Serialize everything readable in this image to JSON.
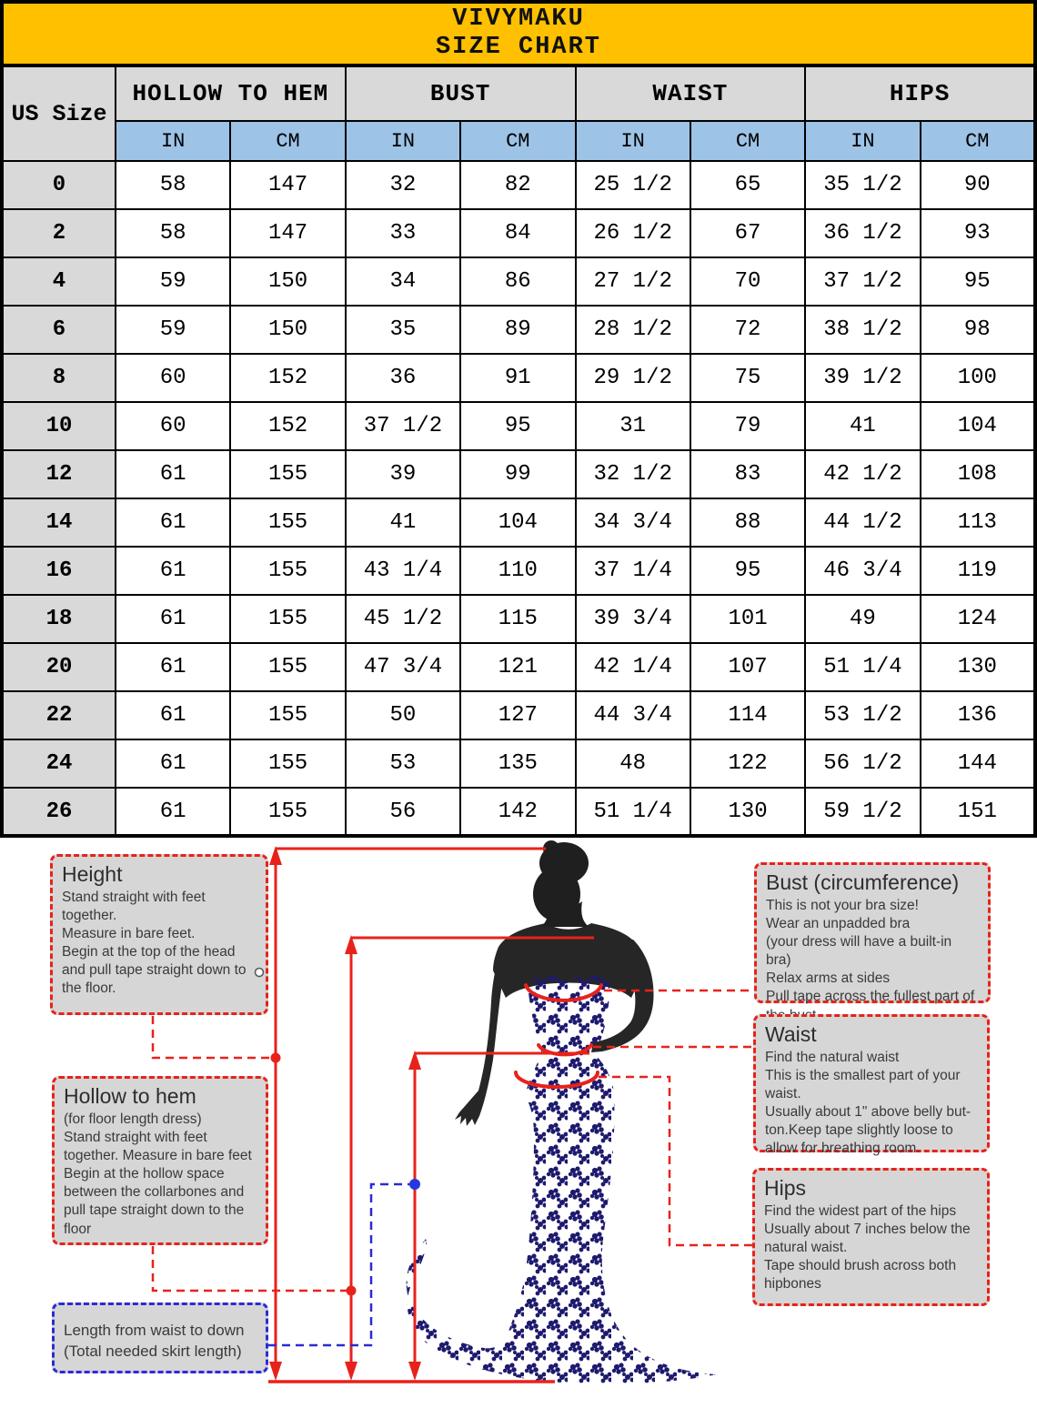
{
  "banner": {
    "brand": "VIVYMAKU",
    "title": "SIZE CHART"
  },
  "chart_data": {
    "type": "table",
    "title": "VIVYMAKU SIZE CHART",
    "row_header": "US Size",
    "column_groups": [
      {
        "label": "HOLLOW TO HEM"
      },
      {
        "label": "BUST"
      },
      {
        "label": "WAIST"
      },
      {
        "label": "HIPS"
      }
    ],
    "unit_in": "IN",
    "unit_cm": "CM",
    "rows": [
      {
        "size": "0",
        "values": [
          "58",
          "147",
          "32",
          "82",
          "25 1/2",
          "65",
          "35 1/2",
          "90"
        ]
      },
      {
        "size": "2",
        "values": [
          "58",
          "147",
          "33",
          "84",
          "26 1/2",
          "67",
          "36 1/2",
          "93"
        ]
      },
      {
        "size": "4",
        "values": [
          "59",
          "150",
          "34",
          "86",
          "27 1/2",
          "70",
          "37 1/2",
          "95"
        ]
      },
      {
        "size": "6",
        "values": [
          "59",
          "150",
          "35",
          "89",
          "28 1/2",
          "72",
          "38 1/2",
          "98"
        ]
      },
      {
        "size": "8",
        "values": [
          "60",
          "152",
          "36",
          "91",
          "29 1/2",
          "75",
          "39 1/2",
          "100"
        ]
      },
      {
        "size": "10",
        "values": [
          "60",
          "152",
          "37 1/2",
          "95",
          "31",
          "79",
          "41",
          "104"
        ]
      },
      {
        "size": "12",
        "values": [
          "61",
          "155",
          "39",
          "99",
          "32 1/2",
          "83",
          "42 1/2",
          "108"
        ]
      },
      {
        "size": "14",
        "values": [
          "61",
          "155",
          "41",
          "104",
          "34 3/4",
          "88",
          "44 1/2",
          "113"
        ]
      },
      {
        "size": "16",
        "values": [
          "61",
          "155",
          "43 1/4",
          "110",
          "37 1/4",
          "95",
          "46 3/4",
          "119"
        ]
      },
      {
        "size": "18",
        "values": [
          "61",
          "155",
          "45 1/2",
          "115",
          "39 3/4",
          "101",
          "49",
          "124"
        ]
      },
      {
        "size": "20",
        "values": [
          "61",
          "155",
          "47 3/4",
          "121",
          "42 1/4",
          "107",
          "51 1/4",
          "130"
        ]
      },
      {
        "size": "22",
        "values": [
          "61",
          "155",
          "50",
          "127",
          "44 3/4",
          "114",
          "53 1/2",
          "136"
        ]
      },
      {
        "size": "24",
        "values": [
          "61",
          "155",
          "53",
          "135",
          "48",
          "122",
          "56 1/2",
          "144"
        ]
      },
      {
        "size": "26",
        "values": [
          "61",
          "155",
          "56",
          "142",
          "51 1/4",
          "130",
          "59 1/2",
          "151"
        ]
      }
    ]
  },
  "guide": {
    "height_box": {
      "title": "Height",
      "body": "Stand straight with feet\ntogether.\nMeasure in bare feet.\nBegin at the top of the head\nand pull tape straight down to\nthe floor."
    },
    "hollow_box": {
      "title": "Hollow to hem",
      "body": "(for floor length dress)\nStand straight with feet\ntogether. Measure in bare feet\nBegin at the hollow space\nbetween the collarbones and\npull tape straight down to the\nfloor"
    },
    "length_box": {
      "body": "Length from waist to down\n(Total needed skirt length)"
    },
    "bust_box": {
      "title": "Bust (circumference)",
      "body": "This is not your bra size!\nWear an unpadded bra\n(your dress will have a built-in bra)\nRelax arms at sides\nPull tape across the fullest part of\nthe bust"
    },
    "waist_box": {
      "title": "Waist",
      "body": "Find the natural waist\nThis is the smallest part of your\nwaist.\nUsually about 1\" above belly but-\nton.Keep tape slightly loose to\nallow for breathing room."
    },
    "hips_box": {
      "title": "Hips",
      "body": "Find the widest part of the hips\nUsually about 7 inches below the\nnatural waist.\nTape should brush across both\nhipbones"
    }
  },
  "colors": {
    "banner_bg": "#FFC000",
    "header_bg": "#D9D9D9",
    "unit_bg": "#9DC3E6",
    "box_bg": "#D6D6D6",
    "accent_red": "#E8221B",
    "accent_blue": "#2B2BD4",
    "dress_navy": "#1E1A6E",
    "silhouette": "#262626"
  }
}
